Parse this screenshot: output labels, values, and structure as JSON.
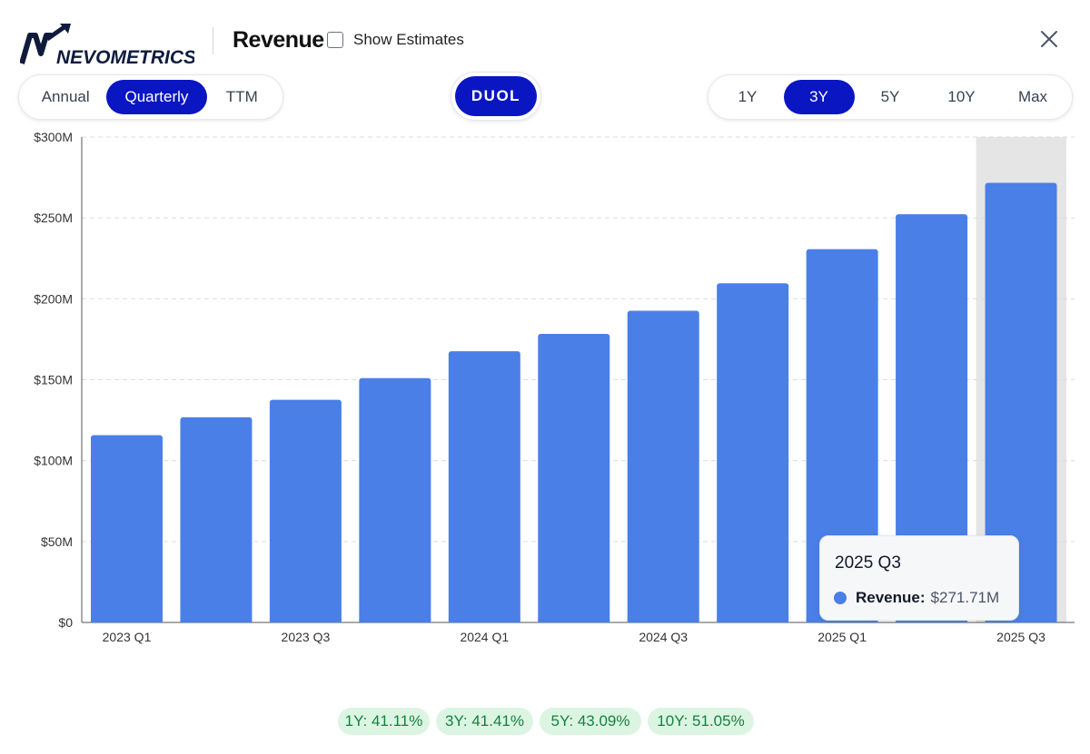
{
  "header": {
    "logo_text": "NEVOMETRICS",
    "title": "Revenue",
    "show_estimates_label": "Show Estimates",
    "show_estimates_checked": false
  },
  "period_tabs": [
    {
      "label": "Annual",
      "active": false
    },
    {
      "label": "Quarterly",
      "active": true
    },
    {
      "label": "TTM",
      "active": false
    }
  ],
  "ticker": "DUOL",
  "range_tabs": [
    {
      "label": "1Y",
      "active": false
    },
    {
      "label": "3Y",
      "active": true
    },
    {
      "label": "5Y",
      "active": false
    },
    {
      "label": "10Y",
      "active": false
    },
    {
      "label": "Max",
      "active": false
    }
  ],
  "colors": {
    "accent": "#0a16c2",
    "bar": "#4a7fe8",
    "highlight": "#e5e5e5",
    "growth_bg": "#dcf5e3",
    "growth_text": "#15803d"
  },
  "chart_data": {
    "type": "bar",
    "title": "Revenue",
    "xlabel": "",
    "ylabel": "",
    "categories": [
      "2023 Q1",
      "2023 Q2",
      "2023 Q3",
      "2023 Q4",
      "2024 Q1",
      "2024 Q2",
      "2024 Q3",
      "2024 Q4",
      "2025 Q1",
      "2025 Q2",
      "2025 Q3"
    ],
    "x_tick_labels": [
      "2023 Q1",
      "2023 Q3",
      "2024 Q1",
      "2024 Q3",
      "2025 Q1",
      "2025 Q3"
    ],
    "series": [
      {
        "name": "Revenue",
        "values": [
          115.7,
          126.8,
          137.6,
          151.0,
          167.6,
          178.3,
          192.6,
          209.6,
          230.7,
          252.3,
          271.71
        ]
      }
    ],
    "ylim": [
      0,
      300
    ],
    "y_ticks": [
      0,
      50,
      100,
      150,
      200,
      250,
      300
    ],
    "y_tick_labels": [
      "$0",
      "$50M",
      "$100M",
      "$150M",
      "$200M",
      "$250M",
      "$300M"
    ],
    "highlighted_category": "2025 Q3",
    "grid": true
  },
  "tooltip": {
    "title": "2025 Q3",
    "label": "Revenue:",
    "value": "$271.71M"
  },
  "growth_rates": [
    {
      "label": "1Y: 41.11%"
    },
    {
      "label": "3Y: 41.41%"
    },
    {
      "label": "5Y: 43.09%"
    },
    {
      "label": "10Y: 51.05%"
    }
  ]
}
